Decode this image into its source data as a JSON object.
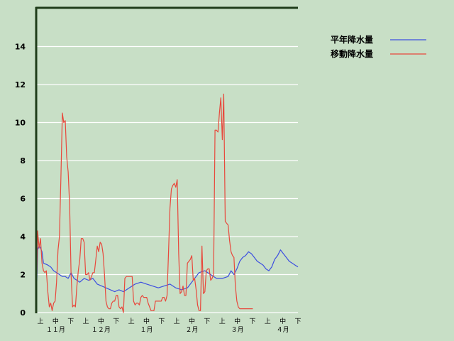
{
  "chart_data": {
    "type": "line",
    "ylim": [
      0,
      16
    ],
    "yticks": [
      0,
      2,
      4,
      6,
      8,
      10,
      12,
      14
    ],
    "y_tick_labels": [
      "0",
      "2",
      "4",
      "6",
      "8",
      "10",
      "12",
      "14"
    ],
    "grid": "horizontal",
    "legend_position": "top-right",
    "periods": [
      "上",
      "中",
      "下",
      "上",
      "中",
      "下",
      "上",
      "中",
      "下",
      "上",
      "中",
      "下",
      "上",
      "中",
      "下",
      "上",
      "中",
      "下"
    ],
    "months": [
      "１１月",
      "１２月",
      "１月",
      "２月",
      "３月",
      "４月"
    ],
    "n_days": 181,
    "series": [
      {
        "name": "平年降水量",
        "color": "#3d4fe0",
        "x": [
          0,
          1,
          2,
          3,
          4,
          5,
          8,
          10,
          12,
          14,
          16,
          18,
          20,
          22,
          24,
          26,
          28,
          30,
          33,
          36,
          39,
          42,
          45,
          48,
          51,
          54,
          57,
          60,
          64,
          68,
          72,
          76,
          80,
          84,
          88,
          92,
          96,
          100,
          104,
          108,
          112,
          116,
          120,
          124,
          128,
          132,
          134,
          136,
          138,
          140,
          142,
          144,
          146,
          148,
          150,
          152,
          154,
          156,
          158,
          160,
          162,
          164,
          166,
          168,
          170,
          172,
          174,
          176,
          178,
          180
        ],
        "values": [
          0.2,
          3.3,
          3.5,
          3.4,
          3.2,
          2.6,
          2.5,
          2.4,
          2.2,
          2.1,
          2.0,
          1.9,
          1.9,
          1.8,
          2.1,
          1.8,
          1.7,
          1.6,
          1.8,
          1.7,
          1.8,
          1.5,
          1.4,
          1.3,
          1.2,
          1.1,
          1.2,
          1.1,
          1.3,
          1.5,
          1.6,
          1.5,
          1.4,
          1.3,
          1.4,
          1.5,
          1.3,
          1.2,
          1.3,
          1.7,
          2.1,
          2.2,
          2.0,
          1.8,
          1.8,
          1.9,
          2.2,
          2.0,
          2.3,
          2.7,
          2.9,
          3.0,
          3.2,
          3.1,
          2.9,
          2.7,
          2.6,
          2.5,
          2.3,
          2.2,
          2.4,
          2.8,
          3.0,
          3.3,
          3.1,
          2.9,
          2.7,
          2.6,
          2.5,
          2.4
        ]
      },
      {
        "name": "移動降水量",
        "color": "#e8483c",
        "x": [
          0,
          1,
          2,
          3,
          4,
          5,
          6,
          7,
          8,
          9,
          10,
          11,
          12,
          13,
          14,
          15,
          16,
          17,
          18,
          19,
          20,
          21,
          22,
          23,
          24,
          25,
          26,
          27,
          28,
          29,
          30,
          31,
          32,
          33,
          34,
          35,
          36,
          37,
          38,
          39,
          40,
          41,
          42,
          43,
          44,
          45,
          46,
          47,
          48,
          49,
          50,
          51,
          52,
          53,
          54,
          55,
          56,
          57,
          58,
          59,
          60,
          61,
          62,
          63,
          64,
          65,
          66,
          67,
          68,
          69,
          70,
          71,
          72,
          73,
          74,
          75,
          76,
          77,
          78,
          79,
          80,
          81,
          82,
          83,
          84,
          85,
          86,
          87,
          88,
          89,
          90,
          91,
          92,
          93,
          94,
          95,
          96,
          97,
          98,
          99,
          100,
          101,
          102,
          103,
          104,
          105,
          106,
          107,
          108,
          109,
          110,
          111,
          112,
          113,
          114,
          115,
          116,
          117,
          118,
          119,
          120,
          121,
          122,
          123,
          124,
          125,
          126,
          127,
          128,
          129,
          130,
          131,
          132,
          133,
          134,
          135,
          136,
          137,
          138,
          139,
          140,
          141,
          142,
          143,
          144,
          145,
          146,
          147,
          148,
          149
        ],
        "values": [
          0.0,
          4.3,
          3.4,
          3.9,
          2.6,
          2.2,
          2.1,
          2.2,
          1.1,
          0.3,
          0.5,
          0.1,
          0.5,
          0.6,
          1.6,
          3.3,
          4.0,
          7.0,
          10.5,
          10.0,
          10.1,
          8.2,
          7.4,
          5.6,
          2.0,
          0.3,
          0.4,
          0.3,
          1.4,
          2.2,
          2.8,
          3.9,
          3.9,
          3.7,
          2.0,
          2.0,
          2.1,
          1.7,
          1.9,
          2.1,
          2.1,
          2.8,
          3.5,
          3.2,
          3.7,
          3.6,
          3.1,
          2.0,
          0.6,
          0.3,
          0.2,
          0.2,
          0.5,
          0.6,
          0.6,
          0.9,
          0.9,
          0.3,
          0.2,
          0.3,
          0.0,
          1.8,
          1.9,
          1.9,
          1.9,
          1.9,
          1.9,
          0.6,
          0.4,
          0.5,
          0.5,
          0.4,
          0.8,
          0.9,
          0.8,
          0.8,
          0.8,
          0.5,
          0.3,
          0.1,
          0.1,
          0.1,
          0.6,
          0.6,
          0.6,
          0.6,
          0.6,
          0.8,
          0.8,
          0.6,
          0.9,
          3.1,
          5.5,
          6.5,
          6.7,
          6.8,
          6.6,
          7.0,
          3.1,
          1.0,
          1.1,
          1.4,
          0.9,
          0.9,
          2.6,
          2.7,
          2.8,
          3.0,
          1.7,
          1.8,
          1.2,
          0.4,
          0.1,
          0.1,
          3.5,
          1.0,
          1.1,
          2.2,
          2.3,
          2.3,
          1.7,
          1.8,
          2.0,
          9.6,
          9.6,
          9.5,
          10.5,
          11.3,
          9.1,
          11.5,
          4.8,
          4.7,
          4.6,
          3.8,
          3.2,
          3.0,
          2.9,
          1.4,
          0.6,
          0.3,
          0.2,
          0.2,
          0.2,
          0.2,
          0.2,
          0.2,
          0.2,
          0.2,
          0.2,
          0.2
        ]
      }
    ]
  }
}
